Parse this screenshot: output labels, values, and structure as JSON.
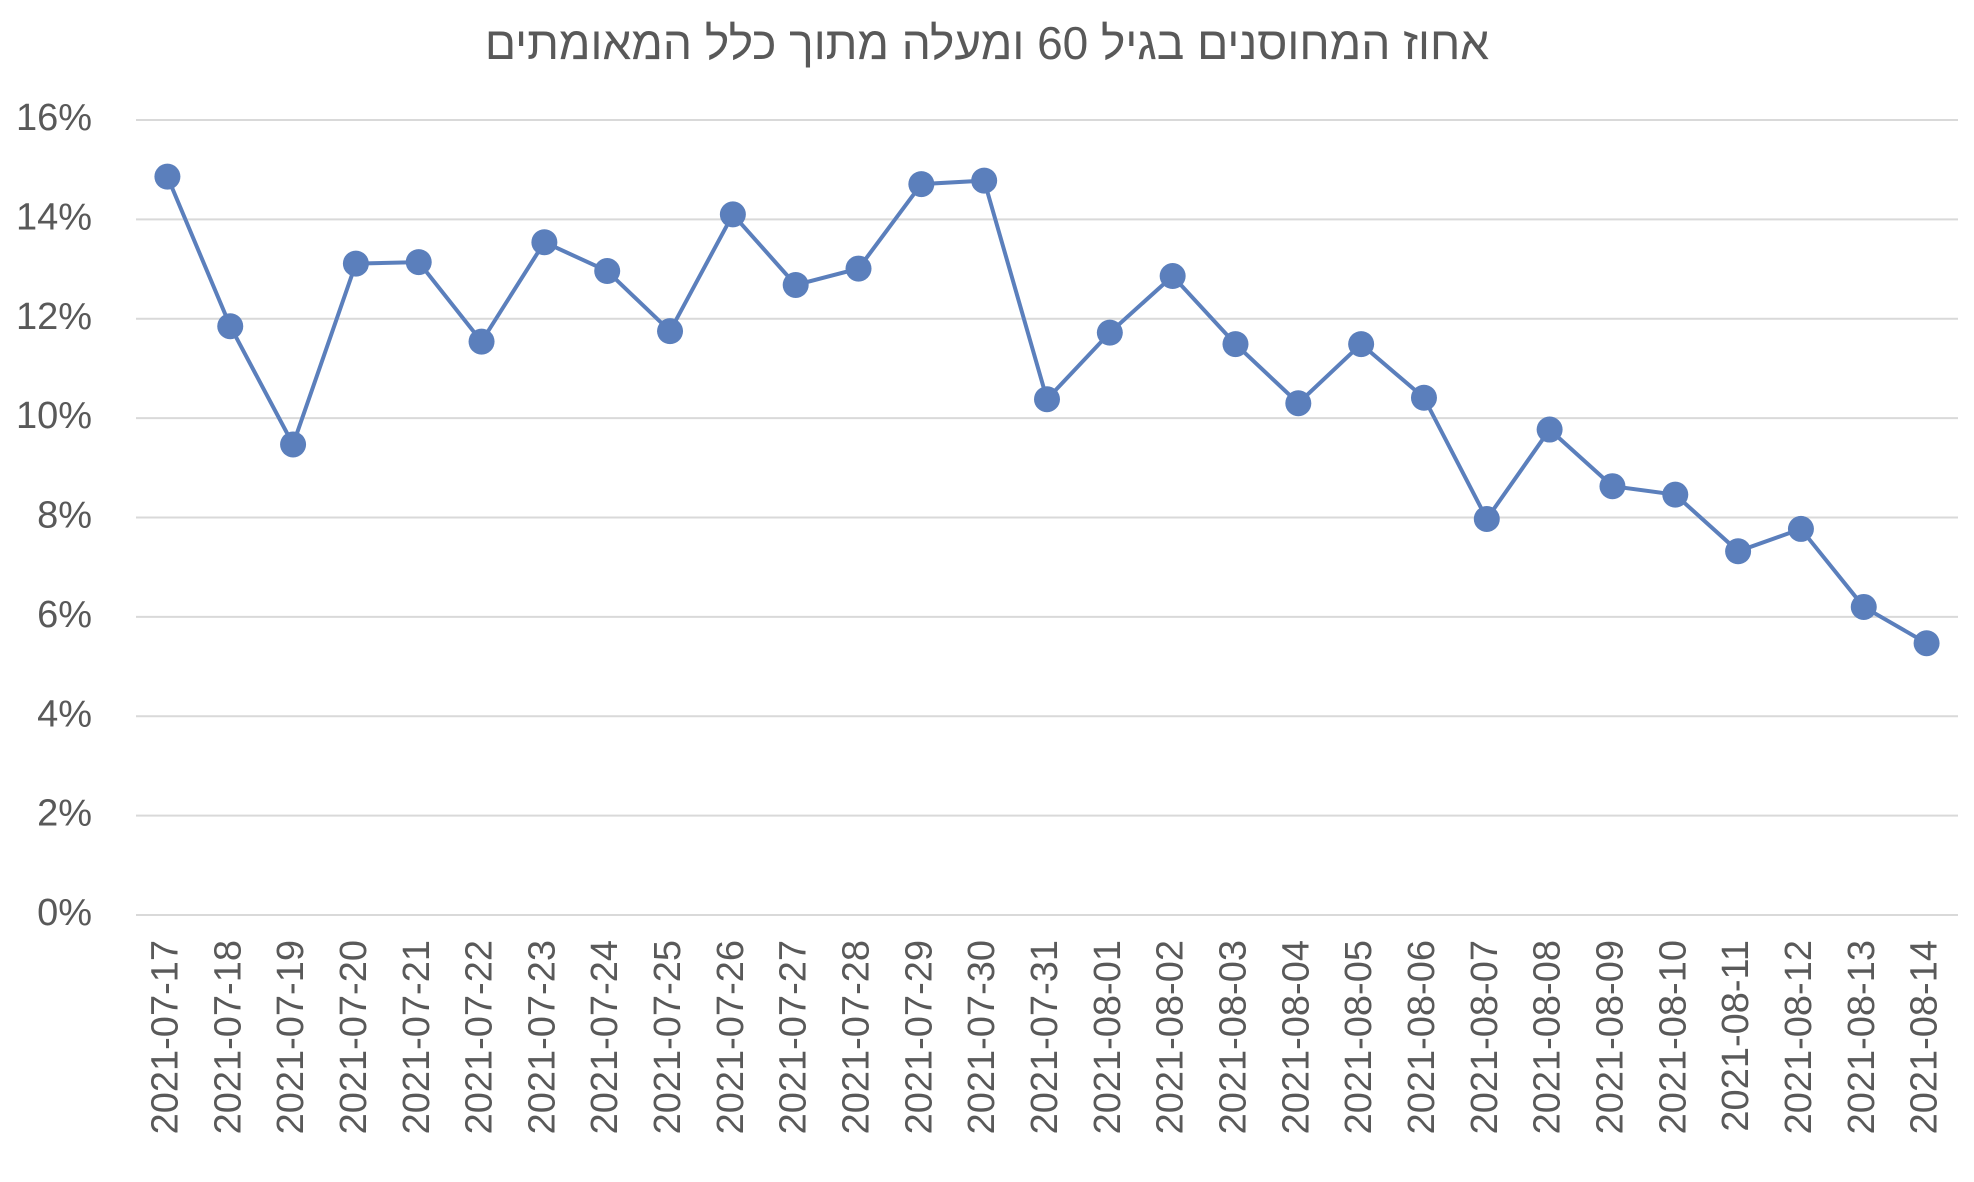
{
  "chart_data": {
    "type": "line",
    "title": "אחוז המחוסנים בגיל 60 ומעלה מתוך כלל המאומתים",
    "categories": [
      "2021-07-17",
      "2021-07-18",
      "2021-07-19",
      "2021-07-20",
      "2021-07-21",
      "2021-07-22",
      "2021-07-23",
      "2021-07-24",
      "2021-07-25",
      "2021-07-26",
      "2021-07-27",
      "2021-07-28",
      "2021-07-29",
      "2021-07-30",
      "2021-07-31",
      "2021-08-01",
      "2021-08-02",
      "2021-08-03",
      "2021-08-04",
      "2021-08-05",
      "2021-08-06",
      "2021-08-07",
      "2021-08-08",
      "2021-08-09",
      "2021-08-10",
      "2021-08-11",
      "2021-08-12",
      "2021-08-13",
      "2021-08-14"
    ],
    "series": [
      {
        "name": "אחוז המחוסנים",
        "color": "#5b7fbc",
        "values": [
          14.86,
          11.85,
          9.47,
          13.11,
          13.14,
          11.54,
          13.54,
          12.96,
          11.75,
          14.1,
          12.68,
          13.01,
          14.71,
          14.78,
          10.38,
          11.72,
          12.86,
          11.49,
          10.3,
          11.49,
          10.41,
          7.97,
          9.77,
          8.63,
          8.46,
          7.32,
          7.77,
          6.2,
          5.47
        ]
      }
    ],
    "ylim": [
      0,
      16
    ],
    "yticks": [
      {
        "value": 0,
        "label": "0%"
      },
      {
        "value": 2,
        "label": "2%"
      },
      {
        "value": 4,
        "label": "4%"
      },
      {
        "value": 6,
        "label": "6%"
      },
      {
        "value": 8,
        "label": "8%"
      },
      {
        "value": 10,
        "label": "10%"
      },
      {
        "value": 12,
        "label": "12%"
      },
      {
        "value": 14,
        "label": "14%"
      },
      {
        "value": 16,
        "label": "16%"
      }
    ],
    "grid": true
  }
}
